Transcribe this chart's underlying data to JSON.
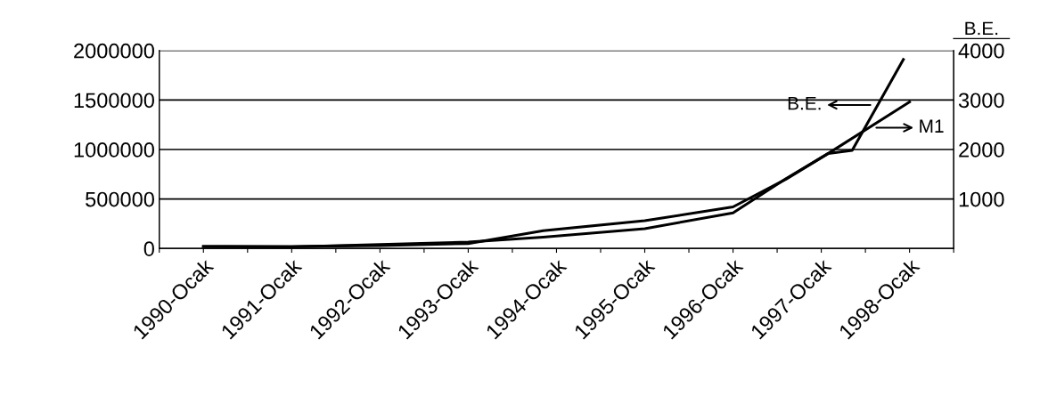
{
  "chart_data": {
    "type": "line",
    "y2label": "B.E.",
    "x": [
      1990,
      1991,
      1992,
      1993,
      1993.85,
      1995,
      1996,
      1996.6,
      1997.08,
      1998
    ],
    "xlim": [
      1989.5,
      1998.5
    ],
    "xticks": [
      {
        "value": 1989.5,
        "label": null
      },
      {
        "value": 1990,
        "label": "1990-Ocak"
      },
      {
        "value": 1990.5,
        "label": null
      },
      {
        "value": 1991,
        "label": "1991-Ocak"
      },
      {
        "value": 1991.5,
        "label": null
      },
      {
        "value": 1992,
        "label": "1992-Ocak"
      },
      {
        "value": 1992.5,
        "label": null
      },
      {
        "value": 1993,
        "label": "1993-Ocak"
      },
      {
        "value": 1993.5,
        "label": null
      },
      {
        "value": 1994,
        "label": "1994-Ocak"
      },
      {
        "value": 1994.5,
        "label": null
      },
      {
        "value": 1995,
        "label": "1995-Ocak"
      },
      {
        "value": 1995.5,
        "label": null
      },
      {
        "value": 1996,
        "label": "1996-Ocak"
      },
      {
        "value": 1996.5,
        "label": null
      },
      {
        "value": 1997,
        "label": "1997-Ocak"
      },
      {
        "value": 1997.5,
        "label": null
      },
      {
        "value": 1998,
        "label": "1998-Ocak"
      },
      {
        "value": 1998.5,
        "label": null
      }
    ],
    "ylim": [
      0,
      2000000
    ],
    "yticks": [
      0,
      500000,
      1000000,
      1500000,
      2000000
    ],
    "y2lim": [
      0,
      4000
    ],
    "y2ticks": [
      1000,
      2000,
      3000,
      4000
    ],
    "grid": "y",
    "marker": "none",
    "line_style": "solid",
    "series": [
      {
        "name": "M1",
        "color": "#000000",
        "values": [
          20000,
          20000,
          30000,
          50000,
          180000,
          280000,
          420000,
          700000,
          960000,
          1480000
        ]
      },
      {
        "name": "B.E.",
        "color": "#000000",
        "axis": "y2",
        "x": [
          1990,
          1991,
          1992,
          1993,
          1993.85,
          1995,
          1996,
          1996.6,
          1997.08,
          1997.35,
          1997.93
        ],
        "values": [
          40,
          30,
          80,
          130,
          230,
          400,
          720,
          1410,
          1920,
          1980,
          3820
        ]
      }
    ]
  }
}
